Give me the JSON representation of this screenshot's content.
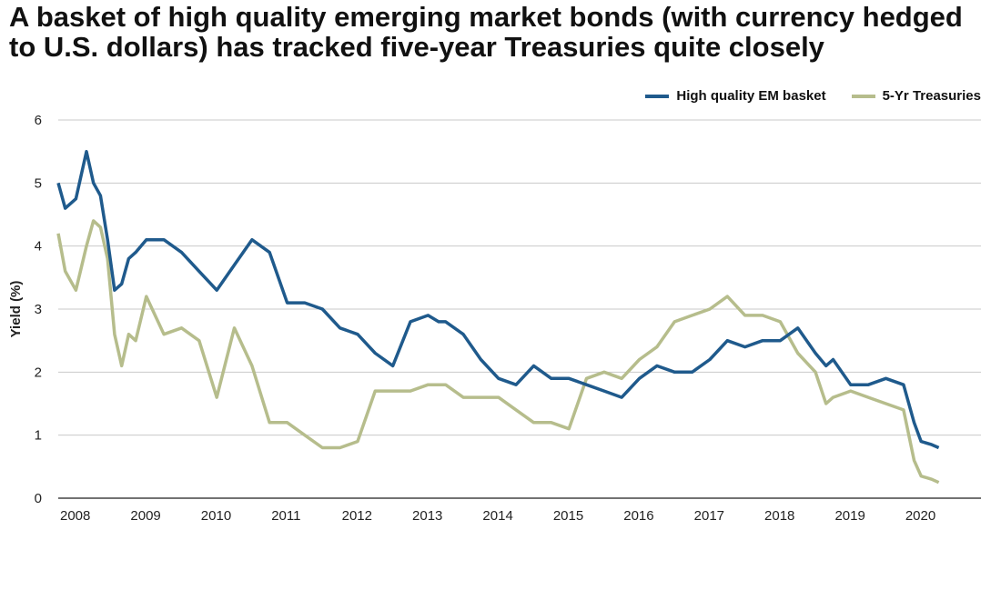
{
  "chart_data": {
    "type": "line",
    "title": "A basket of high quality emerging market bonds (with currency hedged to U.S. dollars) has tracked five-year Treasuries quite closely",
    "ylabel": "Yield (%)",
    "ylim": [
      0,
      6
    ],
    "yticks": [
      "0",
      "1",
      "2",
      "3",
      "4",
      "5",
      "6"
    ],
    "xlim": [
      2008.0,
      2021.1
    ],
    "xticks": [
      {
        "x": 2008.0,
        "label": "2008"
      },
      {
        "x": 2009.0,
        "label": "2009"
      },
      {
        "x": 2010.0,
        "label": "2010"
      },
      {
        "x": 2011.0,
        "label": "2011"
      },
      {
        "x": 2012.0,
        "label": "2012"
      },
      {
        "x": 2013.0,
        "label": "2013"
      },
      {
        "x": 2014.0,
        "label": "2014"
      },
      {
        "x": 2015.0,
        "label": "2015"
      },
      {
        "x": 2016.0,
        "label": "2016"
      },
      {
        "x": 2017.0,
        "label": "2017"
      },
      {
        "x": 2018.0,
        "label": "2018"
      },
      {
        "x": 2019.0,
        "label": "2019"
      },
      {
        "x": 2020.0,
        "label": "2020"
      }
    ],
    "grid": true,
    "legend_position": "top-right",
    "series": [
      {
        "name": "High quality EM basket",
        "color": "#1f5a8c",
        "x": [
          2008.0,
          2008.1,
          2008.25,
          2008.4,
          2008.5,
          2008.6,
          2008.7,
          2008.8,
          2008.9,
          2009.0,
          2009.1,
          2009.25,
          2009.5,
          2009.75,
          2010.0,
          2010.25,
          2010.5,
          2010.75,
          2011.0,
          2011.25,
          2011.5,
          2011.75,
          2012.0,
          2012.25,
          2012.5,
          2012.75,
          2013.0,
          2013.25,
          2013.4,
          2013.5,
          2013.75,
          2014.0,
          2014.25,
          2014.5,
          2014.75,
          2015.0,
          2015.25,
          2015.5,
          2015.75,
          2016.0,
          2016.25,
          2016.5,
          2016.75,
          2017.0,
          2017.25,
          2017.5,
          2017.75,
          2018.0,
          2018.25,
          2018.5,
          2018.75,
          2018.9,
          2019.0,
          2019.25,
          2019.5,
          2019.75,
          2020.0,
          2020.15,
          2020.25,
          2020.4,
          2020.5
        ],
        "values": [
          5.0,
          4.6,
          4.75,
          5.5,
          5.0,
          4.8,
          4.1,
          3.3,
          3.4,
          3.8,
          3.9,
          4.1,
          4.1,
          3.9,
          3.6,
          3.3,
          3.7,
          4.1,
          3.9,
          3.1,
          3.1,
          3.0,
          2.7,
          2.6,
          2.3,
          2.1,
          2.8,
          2.9,
          2.8,
          2.8,
          2.6,
          2.2,
          1.9,
          1.8,
          2.1,
          1.9,
          1.9,
          1.8,
          1.7,
          1.6,
          1.9,
          2.1,
          2.0,
          2.0,
          2.2,
          2.5,
          2.4,
          2.5,
          2.5,
          2.7,
          2.3,
          2.1,
          2.2,
          1.8,
          1.8,
          1.9,
          1.8,
          1.2,
          0.9,
          0.85,
          0.8
        ]
      },
      {
        "name": "5-Yr Treasuries",
        "color": "#b6bd8c",
        "x": [
          2008.0,
          2008.1,
          2008.25,
          2008.4,
          2008.5,
          2008.6,
          2008.7,
          2008.8,
          2008.9,
          2009.0,
          2009.1,
          2009.25,
          2009.5,
          2009.75,
          2010.0,
          2010.25,
          2010.5,
          2010.75,
          2011.0,
          2011.25,
          2011.5,
          2011.75,
          2012.0,
          2012.25,
          2012.5,
          2012.75,
          2013.0,
          2013.25,
          2013.4,
          2013.5,
          2013.75,
          2014.0,
          2014.25,
          2014.5,
          2014.75,
          2015.0,
          2015.25,
          2015.5,
          2015.75,
          2016.0,
          2016.25,
          2016.5,
          2016.75,
          2017.0,
          2017.25,
          2017.5,
          2017.75,
          2018.0,
          2018.25,
          2018.5,
          2018.75,
          2018.9,
          2019.0,
          2019.25,
          2019.5,
          2019.75,
          2020.0,
          2020.15,
          2020.25,
          2020.4,
          2020.5
        ],
        "values": [
          4.2,
          3.6,
          3.3,
          4.0,
          4.4,
          4.3,
          3.8,
          2.6,
          2.1,
          2.6,
          2.5,
          3.2,
          2.6,
          2.7,
          2.5,
          1.6,
          2.7,
          2.1,
          1.2,
          1.2,
          1.0,
          0.8,
          0.8,
          0.9,
          1.7,
          1.7,
          1.7,
          1.8,
          1.8,
          1.8,
          1.6,
          1.6,
          1.6,
          1.4,
          1.2,
          1.2,
          1.1,
          1.9,
          2.0,
          1.9,
          2.2,
          2.4,
          2.8,
          2.9,
          3.0,
          3.2,
          2.9,
          2.9,
          2.8,
          2.3,
          2.0,
          1.5,
          1.6,
          1.7,
          1.6,
          1.5,
          1.4,
          0.6,
          0.35,
          0.3,
          0.25
        ]
      }
    ]
  }
}
